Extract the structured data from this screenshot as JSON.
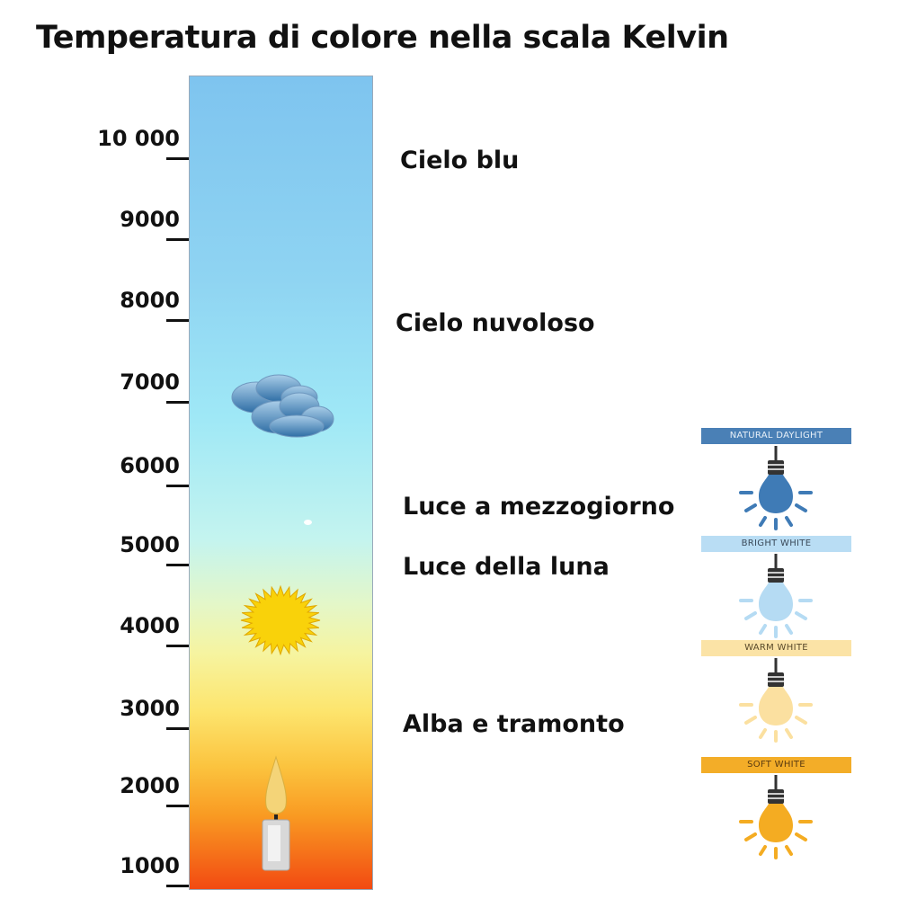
{
  "title": "Temperatura di colore nella scala Kelvin",
  "scale": {
    "ticks": [
      "10 000",
      "9000",
      "8000",
      "7000",
      "6000",
      "5000",
      "4000",
      "3000",
      "2000",
      "1000"
    ]
  },
  "categories": [
    "Cielo blu",
    "Cielo nuvoloso",
    "Luce a mezzogiorno",
    "Luce della luna",
    "Alba e tramonto"
  ],
  "bulbs": [
    {
      "label": "NATURAL DAYLIGHT",
      "color": "#3f7bb6",
      "banner": "#4a80b6",
      "text": "#e8f0f8"
    },
    {
      "label": "BRIGHT WHITE",
      "color": "#b5dbf3",
      "banner": "#b9ddf4",
      "text": "#3b4a5a"
    },
    {
      "label": "WARM WHITE",
      "color": "#fbe0a0",
      "banner": "#fbe3a6",
      "text": "#5a4a2a"
    },
    {
      "label": "SOFT WHITE",
      "color": "#f4ac22",
      "banner": "#f3ad28",
      "text": "#5a3a10"
    }
  ],
  "icons": [
    "cloud-icon",
    "sun-icon",
    "candle-icon",
    "light-bulb-icon"
  ]
}
